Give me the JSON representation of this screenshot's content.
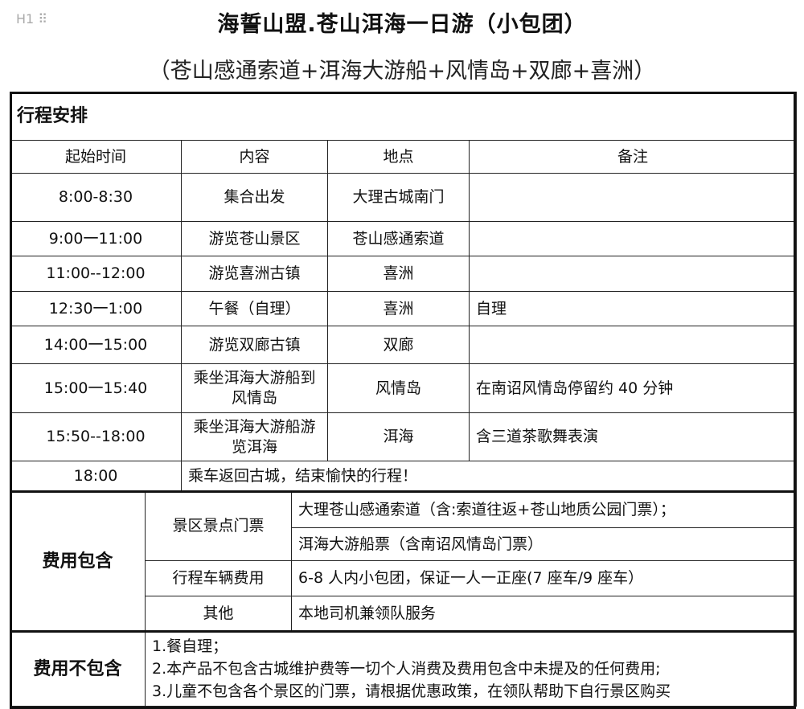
{
  "heading_marker": "H1",
  "title": "海誓山盟.苍山洱海一日游（小包团）",
  "subtitle": "（苍山感通索道+洱海大游船+风情岛+双廊+喜洲）",
  "schedule": {
    "section_title": "行程安排",
    "headers": [
      "起始时间",
      "内容",
      "地点",
      "备注"
    ],
    "rows": [
      {
        "time": "8:00-8:30",
        "content": "集合出发",
        "place": "大理古城南门",
        "note": ""
      },
      {
        "time": "9:00一11:00",
        "content": "游览苍山景区",
        "place": "苍山感通索道",
        "note": ""
      },
      {
        "time": "11:00--12:00",
        "content": "游览喜洲古镇",
        "place": "喜洲",
        "note": ""
      },
      {
        "time": "12:30一1:00",
        "content": "午餐（自理）",
        "place": "喜洲",
        "note": "自理"
      },
      {
        "time": "14:00一15:00",
        "content": "游览双廊古镇",
        "place": "双廊",
        "note": ""
      },
      {
        "time": "15:00一15:40",
        "content": "乘坐洱海大游船到风情岛",
        "place": "风情岛",
        "note": "在南诏风情岛停留约 40 分钟"
      },
      {
        "time": "15:50--18:00",
        "content": "乘坐洱海大游船游览洱海",
        "place": "洱海",
        "note": "含三道茶歌舞表演"
      }
    ],
    "last_row": {
      "time": "18:00",
      "content": "乘车返回古城，结束愉快的行程！"
    }
  },
  "included": {
    "label": "费用包含",
    "items": [
      {
        "category": "景区景点门票",
        "details": [
          "大理苍山感通索道（含:索道往返+苍山地质公园门票）；",
          "洱海大游船票（含南诏风情岛门票）"
        ]
      },
      {
        "category": "行程车辆费用",
        "details": [
          "6-8 人内小包团，保证一人一正座(7 座车/9 座车）"
        ]
      },
      {
        "category": "其他",
        "details": [
          "本地司机兼领队服务"
        ]
      }
    ]
  },
  "excluded": {
    "label": "费用不包含",
    "items": [
      "1.餐自理；",
      "2.本产品不包含古城维护费等一切个人消费及费用包含中未提及的任何费用;",
      "3.儿童不包含各个景区的门票，请根据优惠政策，在领队帮助下自行景区购买"
    ]
  }
}
